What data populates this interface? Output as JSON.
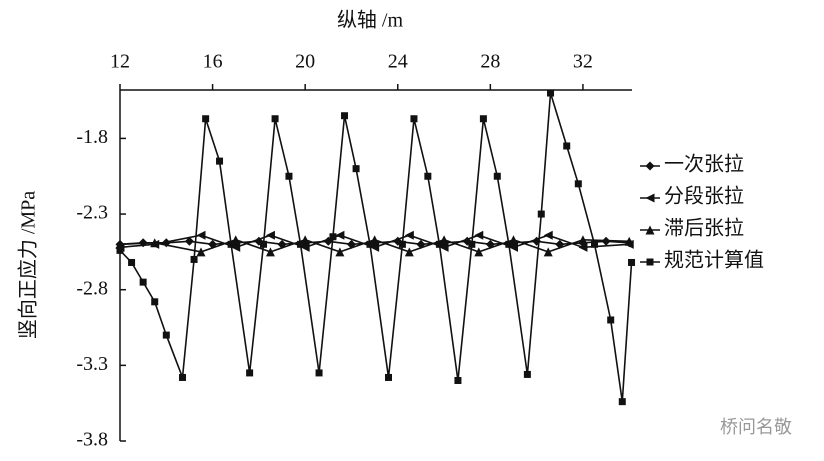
{
  "chart_data": {
    "type": "line",
    "x_label": "纵轴 /m",
    "y_label": "竖向正应力 /MPa",
    "watermark": "桥问名敬",
    "xlim": [
      12,
      34.12
    ],
    "xticks": [
      12,
      16,
      20,
      24,
      28,
      32
    ],
    "ylim": [
      -3.8,
      -1.48
    ],
    "yticks": [
      -1.8,
      -2.3,
      -2.8,
      -3.3,
      -3.8
    ],
    "color": "#111111",
    "legend": "right",
    "series": [
      {
        "name": "一次张拉",
        "marker": "diamond",
        "x": [
          12,
          13,
          14,
          15,
          16,
          17,
          18,
          19,
          20,
          21,
          22,
          23,
          24,
          25,
          26,
          27,
          28,
          29,
          30,
          31,
          32,
          33,
          34
        ],
        "values": [
          -2.5,
          -2.49,
          -2.49,
          -2.48,
          -2.5,
          -2.49,
          -2.48,
          -2.5,
          -2.49,
          -2.48,
          -2.5,
          -2.49,
          -2.48,
          -2.5,
          -2.49,
          -2.48,
          -2.5,
          -2.49,
          -2.48,
          -2.5,
          -2.49,
          -2.48,
          -2.49
        ]
      },
      {
        "name": "分段张拉",
        "marker": "tri-left",
        "x": [
          12,
          13.5,
          15.5,
          17,
          18.5,
          20,
          21.5,
          23,
          24.5,
          26,
          27.5,
          29,
          30.5,
          32,
          34
        ],
        "values": [
          -2.52,
          -2.5,
          -2.44,
          -2.52,
          -2.44,
          -2.52,
          -2.44,
          -2.52,
          -2.44,
          -2.52,
          -2.44,
          -2.52,
          -2.44,
          -2.52,
          -2.5
        ]
      },
      {
        "name": "滞后张拉",
        "marker": "triangle",
        "x": [
          12,
          13.5,
          15.5,
          17,
          18.5,
          20,
          21.5,
          23,
          24.5,
          26,
          27.5,
          29,
          30.5,
          32,
          34
        ],
        "values": [
          -2.5,
          -2.49,
          -2.55,
          -2.47,
          -2.55,
          -2.47,
          -2.55,
          -2.47,
          -2.55,
          -2.47,
          -2.55,
          -2.47,
          -2.55,
          -2.47,
          -2.48
        ]
      },
      {
        "name": "规范计算值",
        "marker": "square",
        "x": [
          12,
          12.5,
          13,
          13.5,
          14,
          14.7,
          15.2,
          15.7,
          16.3,
          16.8,
          17.6,
          18.2,
          18.7,
          19.3,
          19.8,
          20.6,
          21.2,
          21.7,
          22.2,
          22.8,
          23.6,
          24.2,
          24.7,
          25.3,
          25.8,
          26.6,
          27.2,
          27.7,
          28.3,
          28.8,
          29.6,
          30.2,
          30.6,
          31.3,
          31.8,
          32.5,
          33.2,
          33.7,
          34.1
        ],
        "values": [
          -2.54,
          -2.62,
          -2.75,
          -2.88,
          -3.1,
          -3.38,
          -2.6,
          -1.67,
          -1.95,
          -2.5,
          -3.35,
          -2.5,
          -1.67,
          -2.05,
          -2.5,
          -3.35,
          -2.45,
          -1.65,
          -2.0,
          -2.5,
          -3.38,
          -2.5,
          -1.67,
          -2.05,
          -2.5,
          -3.4,
          -2.5,
          -1.67,
          -2.05,
          -2.5,
          -3.36,
          -2.3,
          -1.5,
          -1.85,
          -2.1,
          -2.5,
          -3.0,
          -3.54,
          -2.62
        ]
      }
    ]
  }
}
